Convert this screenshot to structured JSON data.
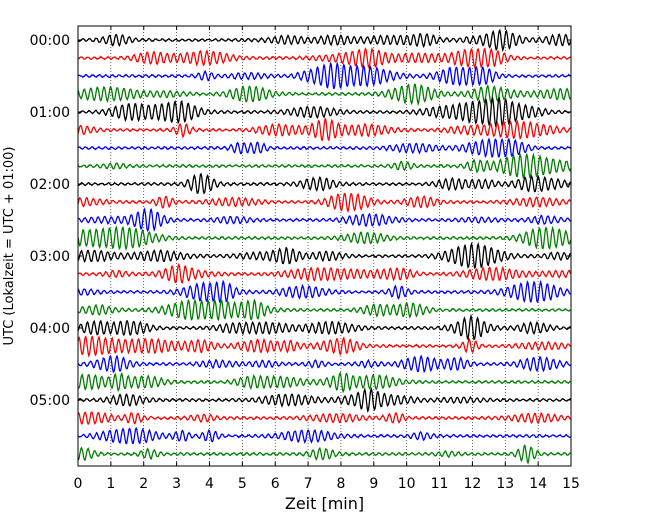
{
  "chart_data": {
    "type": "line",
    "title": "",
    "xlabel": "Zeit  [min]",
    "ylabel": "UTC (Lokalzeit = UTC + 01:00)",
    "xlim": [
      0,
      15
    ],
    "xticks": [
      0,
      1,
      2,
      3,
      4,
      5,
      6,
      7,
      8,
      9,
      10,
      11,
      12,
      13,
      14,
      15
    ],
    "ytick_labels": [
      "00:00",
      "01:00",
      "02:00",
      "03:00",
      "04:00",
      "05:00"
    ],
    "trace_interval_minutes": 15,
    "trace_count": 24,
    "trace_colors": [
      "#000000",
      "#ff0000",
      "#0000ff",
      "#008000"
    ],
    "grid": "vertical dotted lines at each minute",
    "legend": "none"
  }
}
